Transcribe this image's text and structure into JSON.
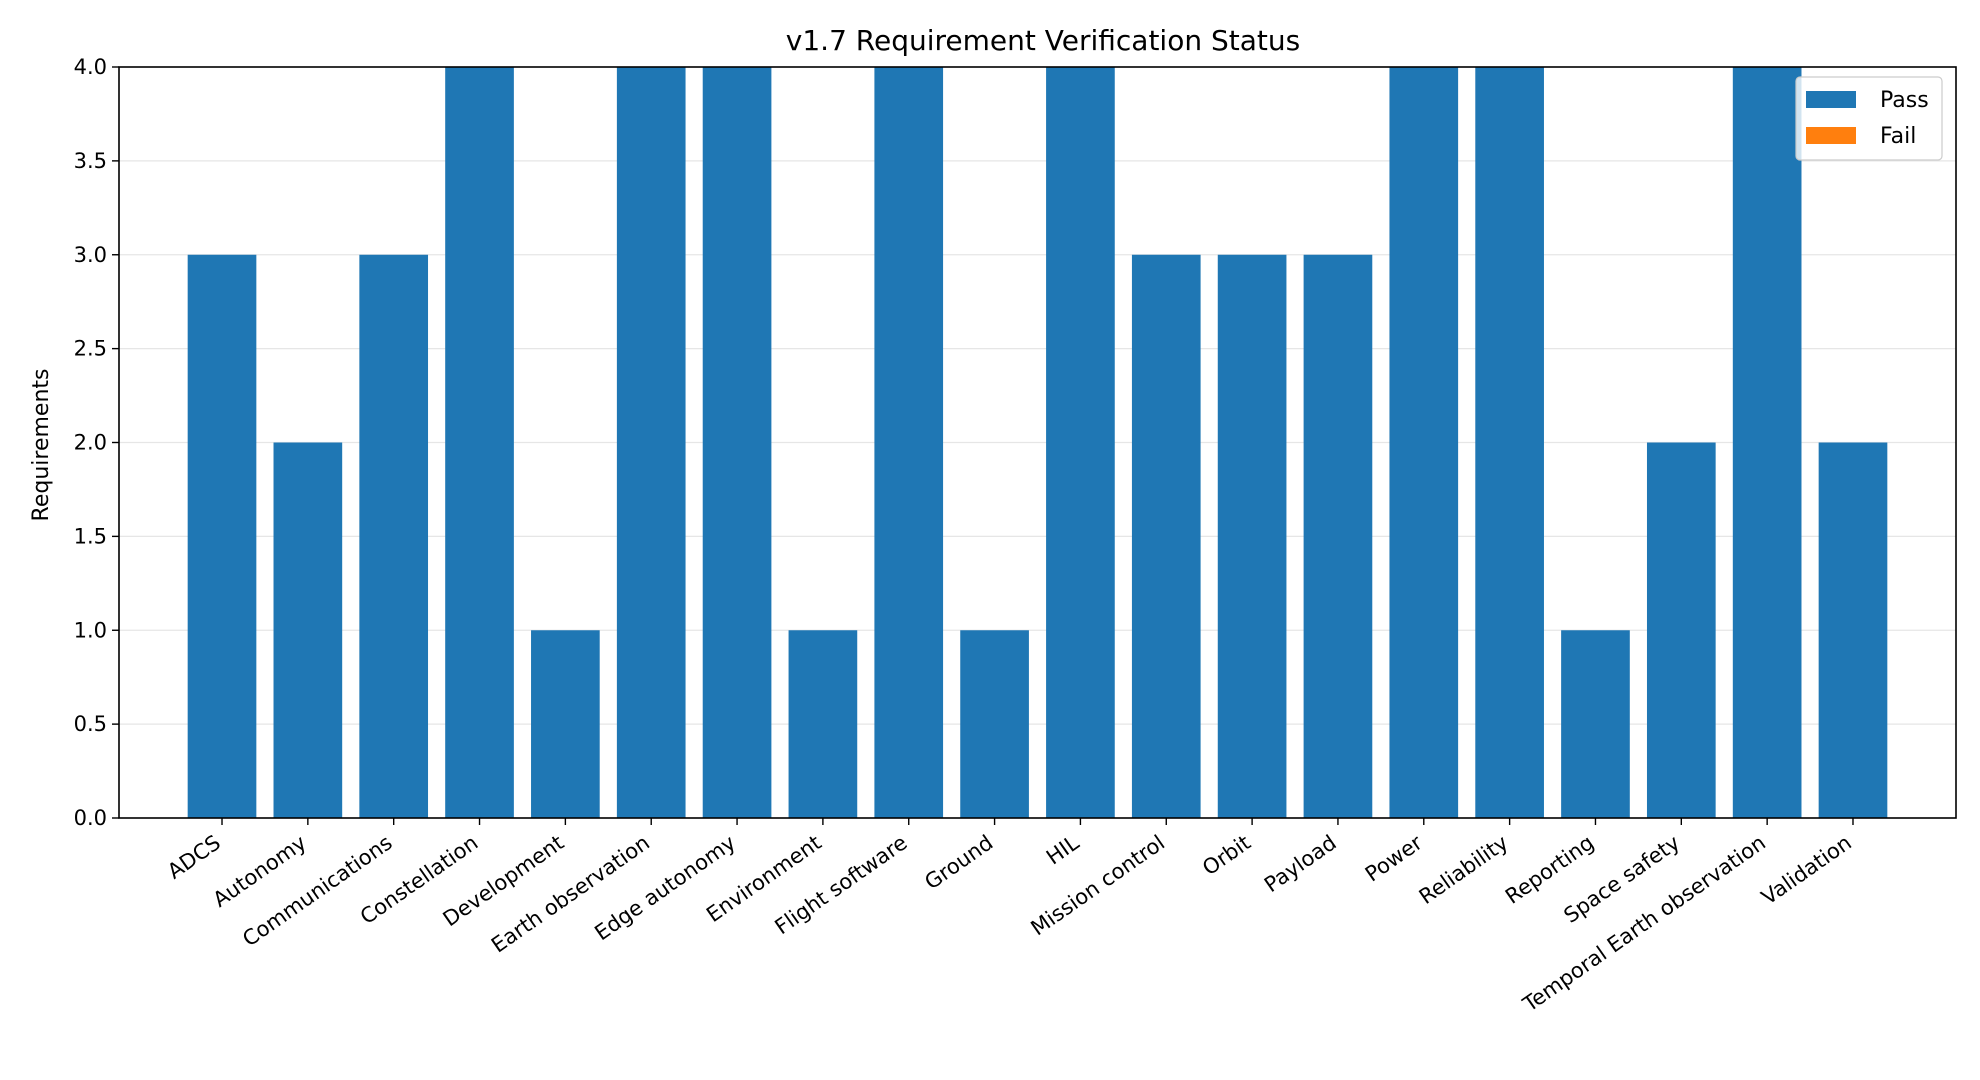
{
  "chart_data": {
    "type": "bar",
    "title": "v1.7 Requirement Verification Status",
    "xlabel": "",
    "ylabel": "Requirements",
    "ylim": [
      0,
      4
    ],
    "yticks": [
      "0.0",
      "0.5",
      "1.0",
      "1.5",
      "2.0",
      "2.5",
      "3.0",
      "3.5",
      "4.0"
    ],
    "grid": "horizontal",
    "legend_position": "top-right",
    "categories": [
      "ADCS",
      "Autonomy",
      "Communications",
      "Constellation",
      "Development",
      "Earth observation",
      "Edge autonomy",
      "Environment",
      "Flight software",
      "Ground",
      "HIL",
      "Mission control",
      "Orbit",
      "Payload",
      "Power",
      "Reliability",
      "Reporting",
      "Space safety",
      "Temporal Earth observation",
      "Validation"
    ],
    "series": [
      {
        "name": "Pass",
        "color": "#1f77b4",
        "values": [
          3,
          2,
          3,
          4,
          1,
          4,
          4,
          1,
          4,
          1,
          4,
          3,
          3,
          3,
          4,
          4,
          1,
          2,
          4,
          2
        ]
      },
      {
        "name": "Fail",
        "color": "#ff7f0e",
        "values": [
          0,
          0,
          0,
          0,
          0,
          0,
          0,
          0,
          0,
          0,
          0,
          0,
          0,
          0,
          0,
          0,
          0,
          0,
          0,
          0
        ]
      }
    ]
  }
}
